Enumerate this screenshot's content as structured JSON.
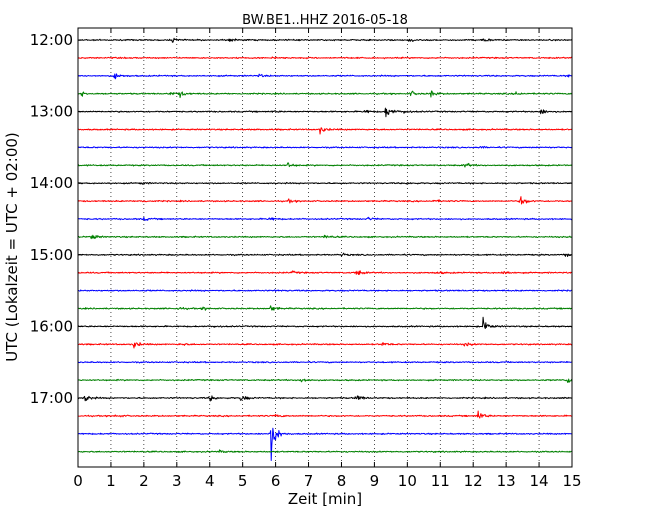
{
  "chart_data": {
    "type": "line",
    "title": "BW.BE1..HHZ 2016-05-18",
    "xlabel": "Zeit  [min]",
    "ylabel": "UTC (Lokalzeit = UTC + 02:00)",
    "xlim": [
      0,
      15
    ],
    "x_ticks": [
      "0",
      "1",
      "2",
      "3",
      "4",
      "5",
      "6",
      "7",
      "8",
      "9",
      "10",
      "11",
      "12",
      "13",
      "14",
      "15"
    ],
    "y_ticks": [
      "12:00",
      "13:00",
      "14:00",
      "15:00",
      "16:00",
      "17:00"
    ],
    "grid": "vertical dotted lines at every minute",
    "color_cycle": [
      "#000000",
      "#ff0000",
      "#0000ff",
      "#008000"
    ],
    "series": [
      {
        "start": "12:00",
        "color": "#000000",
        "events": [
          [
            2.85,
            0.35
          ],
          [
            4.6,
            0.25
          ],
          [
            10.0,
            0.3
          ],
          [
            12.3,
            0.3
          ]
        ]
      },
      {
        "start": "12:15",
        "color": "#ff0000",
        "events": [
          [
            5.9,
            0.12
          ]
        ]
      },
      {
        "start": "12:30",
        "color": "#0000ff",
        "events": [
          [
            1.1,
            0.5
          ],
          [
            5.5,
            0.2
          ],
          [
            14.9,
            0.2
          ]
        ]
      },
      {
        "start": "12:45",
        "color": "#008000",
        "events": [
          [
            0.1,
            0.3
          ],
          [
            2.8,
            0.25
          ],
          [
            3.1,
            0.4
          ],
          [
            10.1,
            0.4
          ],
          [
            10.7,
            0.45
          ],
          [
            13.3,
            0.25
          ]
        ]
      },
      {
        "start": "13:00",
        "color": "#000000",
        "events": [
          [
            5.9,
            0.15
          ],
          [
            8.7,
            0.3
          ],
          [
            9.35,
            1.0
          ],
          [
            9.9,
            0.25
          ],
          [
            14.05,
            0.45
          ]
        ]
      },
      {
        "start": "13:15",
        "color": "#ff0000",
        "events": [
          [
            7.35,
            0.55
          ]
        ]
      },
      {
        "start": "13:30",
        "color": "#0000ff",
        "events": [
          [
            12.2,
            0.15
          ]
        ]
      },
      {
        "start": "13:45",
        "color": "#008000",
        "events": [
          [
            6.35,
            0.45
          ],
          [
            11.75,
            0.35
          ]
        ]
      },
      {
        "start": "14:00",
        "color": "#000000",
        "events": [
          [
            1.9,
            0.15
          ],
          [
            10.0,
            0.15
          ]
        ]
      },
      {
        "start": "14:15",
        "color": "#ff0000",
        "events": [
          [
            1.9,
            0.2
          ],
          [
            6.4,
            0.2
          ],
          [
            10.8,
            0.2
          ],
          [
            13.45,
            0.8
          ]
        ]
      },
      {
        "start": "14:30",
        "color": "#0000ff",
        "events": [
          [
            2.0,
            0.2
          ],
          [
            5.8,
            0.3
          ],
          [
            8.8,
            0.2
          ]
        ]
      },
      {
        "start": "14:45",
        "color": "#008000",
        "events": [
          [
            0.4,
            0.5
          ],
          [
            7.5,
            0.35
          ]
        ]
      },
      {
        "start": "15:00",
        "color": "#000000",
        "events": [
          [
            8.0,
            0.2
          ],
          [
            14.8,
            0.3
          ]
        ]
      },
      {
        "start": "15:15",
        "color": "#ff0000",
        "events": [
          [
            6.5,
            0.2
          ],
          [
            8.45,
            0.5
          ],
          [
            10.9,
            0.25
          ],
          [
            12.9,
            0.4
          ]
        ]
      },
      {
        "start": "15:30",
        "color": "#0000ff",
        "events": [
          [
            6.0,
            0.1
          ]
        ]
      },
      {
        "start": "15:45",
        "color": "#008000",
        "events": [
          [
            3.0,
            0.25
          ],
          [
            3.8,
            0.25
          ],
          [
            5.85,
            0.4
          ]
        ]
      },
      {
        "start": "16:00",
        "color": "#000000",
        "events": [
          [
            4.1,
            0.15
          ],
          [
            12.3,
            1.0
          ]
        ]
      },
      {
        "start": "16:15",
        "color": "#ff0000",
        "events": [
          [
            1.7,
            0.55
          ],
          [
            3.1,
            0.25
          ],
          [
            9.25,
            0.3
          ],
          [
            11.75,
            0.3
          ]
        ]
      },
      {
        "start": "16:30",
        "color": "#0000ff",
        "events": []
      },
      {
        "start": "16:45",
        "color": "#008000",
        "events": [
          [
            6.75,
            0.55
          ],
          [
            14.85,
            0.7
          ]
        ]
      },
      {
        "start": "17:00",
        "color": "#000000",
        "events": [
          [
            0.2,
            0.6
          ],
          [
            4.0,
            0.45
          ],
          [
            4.95,
            0.55
          ],
          [
            8.45,
            0.55
          ]
        ]
      },
      {
        "start": "17:15",
        "color": "#ff0000",
        "events": [
          [
            1.15,
            0.25
          ],
          [
            6.0,
            0.25
          ],
          [
            12.15,
            0.8
          ]
        ]
      },
      {
        "start": "17:30",
        "color": "#0000ff",
        "events": [
          [
            5.85,
            3.2
          ]
        ]
      },
      {
        "start": "17:45",
        "color": "#008000",
        "events": [
          [
            4.3,
            0.15
          ]
        ]
      }
    ]
  }
}
